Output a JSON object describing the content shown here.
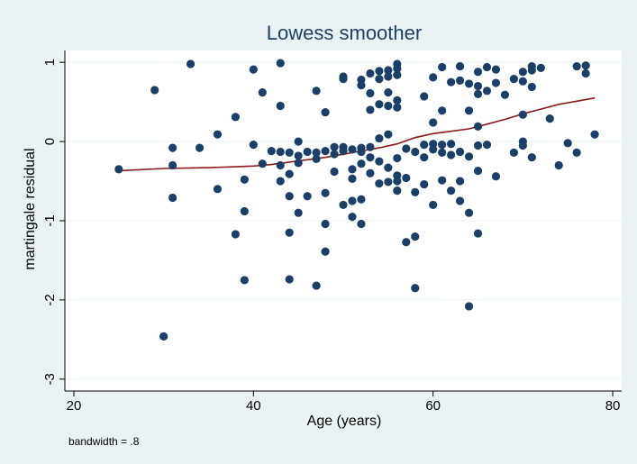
{
  "chart_data": {
    "type": "scatter",
    "title": "Lowess smoother",
    "xlabel": "Age (years)",
    "ylabel": "martingale residual",
    "note": "bandwidth = .8",
    "xlim": [
      19,
      81
    ],
    "ylim": [
      -3.15,
      1.15
    ],
    "xticks": [
      20,
      40,
      60,
      80
    ],
    "yticks": [
      -3,
      -2,
      -1,
      0,
      1
    ],
    "grid": "horizontal",
    "colors": {
      "background": "#eaf2f3",
      "plot_area": "#ffffff",
      "points": "#1b3f66",
      "line": "#8b1a1a",
      "grid": "#eaf2f3",
      "title": "#1e3f66"
    },
    "series": [
      {
        "points": [
          [
            25,
            -0.35
          ],
          [
            29,
            0.65
          ],
          [
            30,
            -2.46
          ],
          [
            31,
            -0.08
          ],
          [
            31,
            -0.3
          ],
          [
            31,
            -0.71
          ],
          [
            33,
            0.98
          ],
          [
            34,
            -0.08
          ],
          [
            36,
            0.09
          ],
          [
            36,
            -0.6
          ],
          [
            38,
            0.31
          ],
          [
            38,
            -1.17
          ],
          [
            39,
            -0.48
          ],
          [
            39,
            -0.88
          ],
          [
            39,
            -1.75
          ],
          [
            40,
            0.91
          ],
          [
            40,
            -0.04
          ],
          [
            41,
            0.62
          ],
          [
            41,
            -0.28
          ],
          [
            42,
            -0.12
          ],
          [
            43,
            0.99
          ],
          [
            43,
            0.45
          ],
          [
            43,
            -0.13
          ],
          [
            43,
            -0.3
          ],
          [
            43,
            -0.5
          ],
          [
            44,
            -0.14
          ],
          [
            44,
            -0.41
          ],
          [
            44,
            -0.69
          ],
          [
            44,
            -1.15
          ],
          [
            44,
            -1.74
          ],
          [
            45,
            0.0
          ],
          [
            45,
            -0.18
          ],
          [
            45,
            -0.27
          ],
          [
            45,
            -0.9
          ],
          [
            46,
            -0.13
          ],
          [
            46,
            -0.69
          ],
          [
            47,
            0.64
          ],
          [
            47,
            -0.14
          ],
          [
            47,
            -0.22
          ],
          [
            47,
            -1.82
          ],
          [
            48,
            0.37
          ],
          [
            48,
            -0.12
          ],
          [
            48,
            -0.65
          ],
          [
            48,
            -1.04
          ],
          [
            48,
            -1.39
          ],
          [
            49,
            -0.07
          ],
          [
            49,
            -0.16
          ],
          [
            49,
            -0.38
          ],
          [
            50,
            0.82
          ],
          [
            50,
            0.79
          ],
          [
            50,
            -0.07
          ],
          [
            50,
            -0.12
          ],
          [
            50,
            -0.8
          ],
          [
            51,
            -0.1
          ],
          [
            51,
            -0.35
          ],
          [
            51,
            -0.47
          ],
          [
            51,
            -0.75
          ],
          [
            51,
            -0.95
          ],
          [
            52,
            0.78
          ],
          [
            52,
            0.71
          ],
          [
            52,
            -0.08
          ],
          [
            52,
            -0.13
          ],
          [
            52,
            -0.28
          ],
          [
            52,
            -0.73
          ],
          [
            52,
            -1.04
          ],
          [
            53,
            0.86
          ],
          [
            53,
            0.61
          ],
          [
            53,
            0.4
          ],
          [
            53,
            -0.07
          ],
          [
            53,
            -0.2
          ],
          [
            53,
            -0.4
          ],
          [
            54,
            0.89
          ],
          [
            54,
            0.79
          ],
          [
            54,
            0.47
          ],
          [
            54,
            0.04
          ],
          [
            54,
            -0.25
          ],
          [
            54,
            -0.53
          ],
          [
            55,
            0.9
          ],
          [
            55,
            0.82
          ],
          [
            55,
            0.62
          ],
          [
            55,
            0.45
          ],
          [
            55,
            0.09
          ],
          [
            55,
            -0.51
          ],
          [
            55,
            -0.33
          ],
          [
            56,
            0.98
          ],
          [
            56,
            0.92
          ],
          [
            56,
            0.84
          ],
          [
            56,
            0.52
          ],
          [
            56,
            0.43
          ],
          [
            56,
            -0.21
          ],
          [
            56,
            -0.43
          ],
          [
            56,
            -0.5
          ],
          [
            56,
            -0.62
          ],
          [
            57,
            -0.09
          ],
          [
            57,
            -0.46
          ],
          [
            57,
            -1.27
          ],
          [
            58,
            -0.13
          ],
          [
            58,
            -0.64
          ],
          [
            58,
            -1.2
          ],
          [
            58,
            -1.85
          ],
          [
            59,
            0.57
          ],
          [
            59,
            -0.04
          ],
          [
            59,
            -0.2
          ],
          [
            59,
            -0.54
          ],
          [
            60,
            0.81
          ],
          [
            60,
            0.24
          ],
          [
            60,
            -0.03
          ],
          [
            60,
            -0.1
          ],
          [
            60,
            -0.8
          ],
          [
            61,
            0.94
          ],
          [
            61,
            0.39
          ],
          [
            61,
            -0.04
          ],
          [
            61,
            -0.14
          ],
          [
            61,
            -0.49
          ],
          [
            62,
            0.75
          ],
          [
            62,
            -0.03
          ],
          [
            62,
            -0.17
          ],
          [
            62,
            -0.62
          ],
          [
            63,
            0.95
          ],
          [
            63,
            0.77
          ],
          [
            63,
            -0.13
          ],
          [
            63,
            -0.5
          ],
          [
            63,
            -0.75
          ],
          [
            64,
            0.73
          ],
          [
            64,
            0.39
          ],
          [
            64,
            -0.19
          ],
          [
            64,
            -0.9
          ],
          [
            64,
            -2.08
          ],
          [
            65,
            0.88
          ],
          [
            65,
            0.7
          ],
          [
            65,
            0.6
          ],
          [
            65,
            0.19
          ],
          [
            65,
            -0.05
          ],
          [
            65,
            -0.37
          ],
          [
            65,
            -1.16
          ],
          [
            66,
            0.94
          ],
          [
            66,
            0.64
          ],
          [
            66,
            -0.04
          ],
          [
            67,
            0.91
          ],
          [
            67,
            0.74
          ],
          [
            67,
            -0.44
          ],
          [
            68,
            0.59
          ],
          [
            69,
            0.79
          ],
          [
            69,
            -0.14
          ],
          [
            70,
            0.88
          ],
          [
            70,
            0.76
          ],
          [
            70,
            0.34
          ],
          [
            70,
            0.0
          ],
          [
            70,
            -0.05
          ],
          [
            71,
            0.95
          ],
          [
            71,
            0.9
          ],
          [
            71,
            0.69
          ],
          [
            71,
            -0.2
          ],
          [
            72,
            0.93
          ],
          [
            73,
            0.29
          ],
          [
            74,
            -0.3
          ],
          [
            75,
            -0.02
          ],
          [
            76,
            0.95
          ],
          [
            76,
            -0.14
          ],
          [
            77,
            0.96
          ],
          [
            77,
            0.86
          ],
          [
            78,
            0.09
          ]
        ]
      },
      {
        "type": "line",
        "points": [
          [
            25,
            -0.37
          ],
          [
            30,
            -0.34
          ],
          [
            35,
            -0.33
          ],
          [
            40,
            -0.31
          ],
          [
            42,
            -0.29
          ],
          [
            44,
            -0.26
          ],
          [
            46,
            -0.23
          ],
          [
            48,
            -0.2
          ],
          [
            50,
            -0.16
          ],
          [
            52,
            -0.12
          ],
          [
            54,
            -0.08
          ],
          [
            56,
            -0.03
          ],
          [
            58,
            0.05
          ],
          [
            60,
            0.1
          ],
          [
            62,
            0.13
          ],
          [
            64,
            0.16
          ],
          [
            66,
            0.22
          ],
          [
            68,
            0.28
          ],
          [
            70,
            0.35
          ],
          [
            72,
            0.41
          ],
          [
            74,
            0.47
          ],
          [
            76,
            0.51
          ],
          [
            78,
            0.55
          ]
        ]
      }
    ]
  }
}
